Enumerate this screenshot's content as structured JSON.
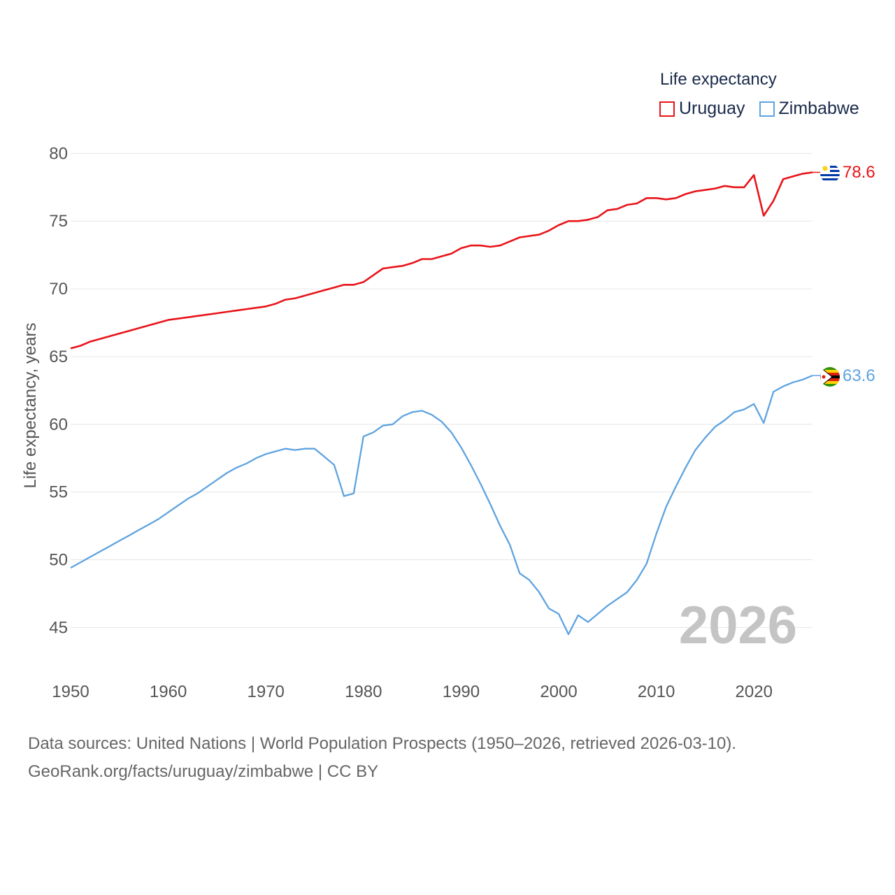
{
  "legend": {
    "title": "Life expectancy"
  },
  "colors": {
    "uruguay": "#e8141a",
    "zimbabwe": "#5ea3e0",
    "grid": "#e6e6e6",
    "text": "#555555"
  },
  "footer": {
    "line1": "Data sources: United Nations | World Population Prospects (1950–2026, retrieved 2026-03-10).",
    "line2": "GeoRank.org/facts/uruguay/zimbabwe | CC BY"
  },
  "chart_data": {
    "type": "line",
    "title": "Life expectancy",
    "ylabel": "Life expectancy, years",
    "xlabel": "",
    "xlim": [
      1950,
      2026
    ],
    "ylim": [
      42.8,
      81
    ],
    "yticks": [
      45,
      50,
      55,
      60,
      65,
      70,
      75,
      80
    ],
    "xticks": [
      1950,
      1960,
      1970,
      1980,
      1990,
      2000,
      2010,
      2020
    ],
    "year_label": "2026",
    "x": [
      1950,
      1951,
      1952,
      1953,
      1954,
      1955,
      1956,
      1957,
      1958,
      1959,
      1960,
      1961,
      1962,
      1963,
      1964,
      1965,
      1966,
      1967,
      1968,
      1969,
      1970,
      1971,
      1972,
      1973,
      1974,
      1975,
      1976,
      1977,
      1978,
      1979,
      1980,
      1981,
      1982,
      1983,
      1984,
      1985,
      1986,
      1987,
      1988,
      1989,
      1990,
      1991,
      1992,
      1993,
      1994,
      1995,
      1996,
      1997,
      1998,
      1999,
      2000,
      2001,
      2002,
      2003,
      2004,
      2005,
      2006,
      2007,
      2008,
      2009,
      2010,
      2011,
      2012,
      2013,
      2014,
      2015,
      2016,
      2017,
      2018,
      2019,
      2020,
      2021,
      2022,
      2023,
      2024,
      2025,
      2026
    ],
    "series": [
      {
        "name": "Uruguay",
        "color": "#e8141a",
        "end_label": "78.6",
        "values": [
          65.6,
          65.8,
          66.1,
          66.3,
          66.5,
          66.7,
          66.9,
          67.1,
          67.3,
          67.5,
          67.7,
          67.8,
          67.9,
          68.0,
          68.1,
          68.2,
          68.3,
          68.4,
          68.5,
          68.6,
          68.7,
          68.9,
          69.2,
          69.3,
          69.5,
          69.7,
          69.9,
          70.1,
          70.3,
          70.3,
          70.5,
          71.0,
          71.5,
          71.6,
          71.7,
          71.9,
          72.2,
          72.2,
          72.4,
          72.6,
          73.0,
          73.2,
          73.2,
          73.1,
          73.2,
          73.5,
          73.8,
          73.9,
          74.0,
          74.3,
          74.7,
          75.0,
          75.0,
          75.1,
          75.3,
          75.8,
          75.9,
          76.2,
          76.3,
          76.7,
          76.7,
          76.6,
          76.7,
          77.0,
          77.2,
          77.3,
          77.4,
          77.6,
          77.5,
          77.5,
          78.4,
          75.4,
          76.5,
          78.1,
          78.3,
          78.5,
          78.6
        ]
      },
      {
        "name": "Zimbabwe",
        "color": "#5ea3e0",
        "end_label": "63.6",
        "values": [
          49.4,
          49.8,
          50.2,
          50.6,
          51.0,
          51.4,
          51.8,
          52.2,
          52.6,
          53.0,
          53.5,
          54.0,
          54.5,
          54.9,
          55.4,
          55.9,
          56.4,
          56.8,
          57.1,
          57.5,
          57.8,
          58.0,
          58.2,
          58.1,
          58.2,
          58.2,
          57.6,
          57.0,
          54.7,
          54.9,
          59.1,
          59.4,
          59.9,
          60.0,
          60.6,
          60.9,
          61.0,
          60.7,
          60.2,
          59.4,
          58.3,
          57.0,
          55.6,
          54.1,
          52.5,
          51.1,
          49.0,
          48.5,
          47.6,
          46.4,
          46.0,
          44.5,
          45.9,
          45.4,
          46.0,
          46.6,
          47.1,
          47.6,
          48.5,
          49.7,
          51.9,
          53.9,
          55.4,
          56.8,
          58.1,
          59.0,
          59.8,
          60.3,
          60.9,
          61.1,
          61.5,
          60.1,
          62.4,
          62.8,
          63.1,
          63.3,
          63.6
        ]
      }
    ]
  }
}
